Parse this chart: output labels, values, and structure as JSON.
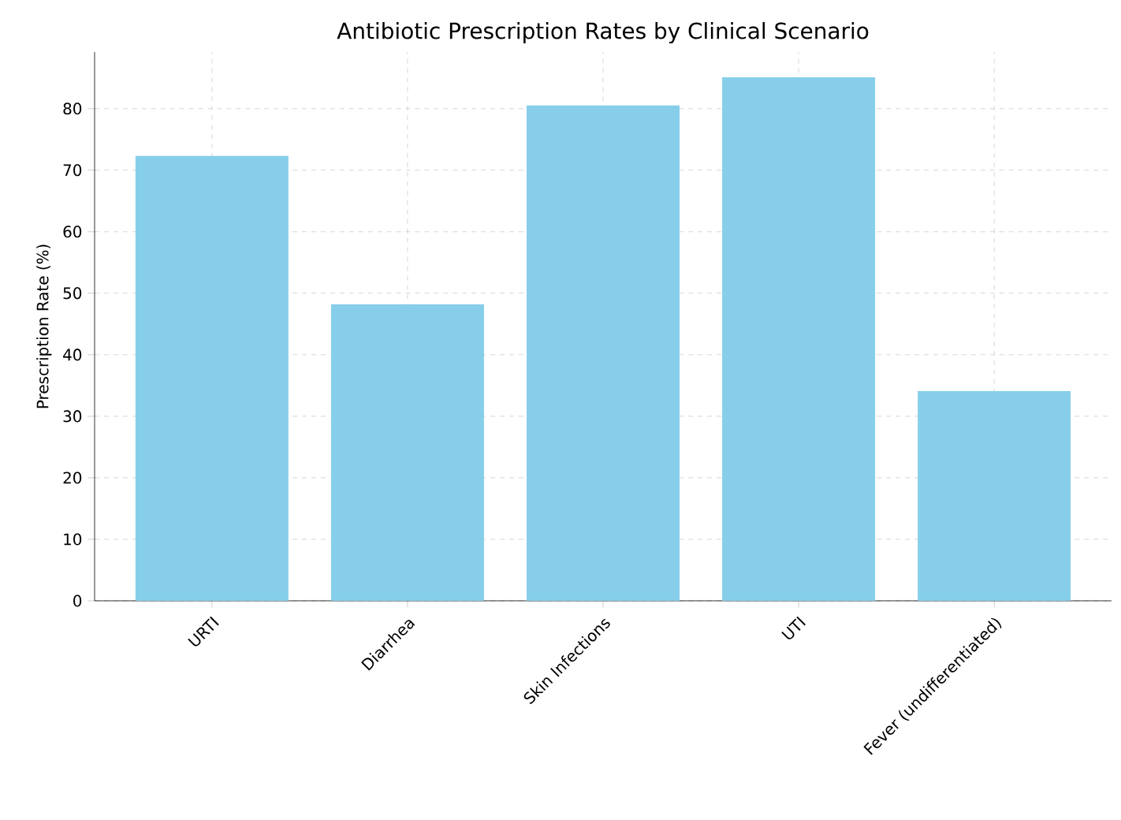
{
  "chart_data": {
    "type": "bar",
    "title": "Antibiotic Prescription Rates by Clinical Scenario",
    "ylabel": "Prescription Rate (%)",
    "categories": [
      "URTI",
      "Diarrhea",
      "Skin Infections",
      "UTI",
      "Fever (undifferentiated)"
    ],
    "values": [
      72.3,
      48.2,
      80.5,
      85.1,
      34.1
    ],
    "color": "#87ceeb",
    "ylim": [
      0,
      89.2
    ],
    "yticks": [
      0,
      10,
      20,
      30,
      40,
      50,
      60,
      70,
      80
    ],
    "grid": true
  }
}
